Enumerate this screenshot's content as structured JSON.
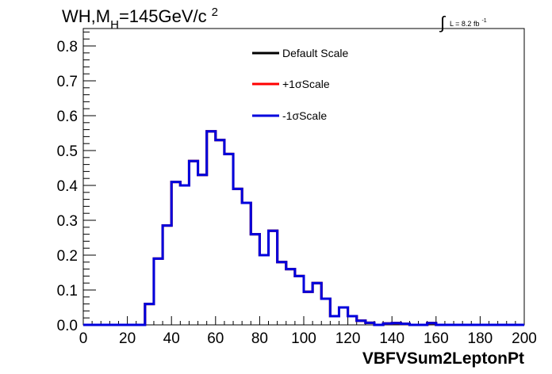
{
  "chart_data": {
    "type": "line",
    "title_main": "WH,M",
    "title_sub": "H",
    "title_rest": "=145GeV/c",
    "title_sup": "2",
    "lumi_symbol": "∫",
    "lumi_text": "L = 8.2 fb",
    "lumi_sup": "-1",
    "xlabel": "VBFVSum2LeptonPt",
    "ylabel": "",
    "xlim": [
      0,
      200
    ],
    "ylim": [
      0,
      0.85
    ],
    "x_ticks": [
      "0",
      "20",
      "40",
      "60",
      "80",
      "100",
      "120",
      "140",
      "160",
      "180",
      "200"
    ],
    "y_ticks": [
      "0.0",
      "0.1",
      "0.2",
      "0.3",
      "0.4",
      "0.5",
      "0.6",
      "0.7",
      "0.8"
    ],
    "bin_width": 4,
    "bin_edges_start": 0,
    "legend_position": "top-center",
    "series": [
      {
        "name": "Default Scale",
        "color": "#000000",
        "values": [
          0,
          0,
          0,
          0,
          0,
          0,
          0,
          0.06,
          0.19,
          0.285,
          0.41,
          0.4,
          0.47,
          0.43,
          0.555,
          0.53,
          0.49,
          0.39,
          0.35,
          0.26,
          0.2,
          0.27,
          0.18,
          0.16,
          0.14,
          0.095,
          0.12,
          0.075,
          0.025,
          0.05,
          0.025,
          0.012,
          0.006,
          0.0,
          0.004,
          0.005,
          0.003,
          0.0,
          0.0,
          0.005,
          0.0,
          0,
          0,
          0,
          0,
          0,
          0,
          0,
          0,
          0
        ]
      },
      {
        "name": "+1σScale",
        "color": "#ff0000",
        "values": [
          0,
          0,
          0,
          0,
          0,
          0,
          0,
          0.06,
          0.19,
          0.285,
          0.41,
          0.4,
          0.47,
          0.43,
          0.555,
          0.53,
          0.49,
          0.39,
          0.35,
          0.26,
          0.2,
          0.27,
          0.18,
          0.16,
          0.14,
          0.095,
          0.12,
          0.075,
          0.025,
          0.05,
          0.025,
          0.012,
          0.006,
          0.0,
          0.004,
          0.005,
          0.003,
          0.0,
          0.0,
          0.005,
          0.0,
          0,
          0,
          0,
          0,
          0,
          0,
          0,
          0,
          0
        ]
      },
      {
        "name": "-1σScale",
        "color": "#0000dd",
        "values": [
          0,
          0,
          0,
          0,
          0,
          0,
          0,
          0.06,
          0.19,
          0.285,
          0.41,
          0.4,
          0.47,
          0.43,
          0.555,
          0.53,
          0.49,
          0.39,
          0.35,
          0.26,
          0.2,
          0.27,
          0.18,
          0.16,
          0.14,
          0.095,
          0.12,
          0.075,
          0.025,
          0.05,
          0.025,
          0.012,
          0.006,
          0.0,
          0.004,
          0.005,
          0.003,
          0.0,
          0.0,
          0.005,
          0.0,
          0,
          0,
          0,
          0,
          0,
          0,
          0,
          0,
          0
        ]
      }
    ]
  }
}
